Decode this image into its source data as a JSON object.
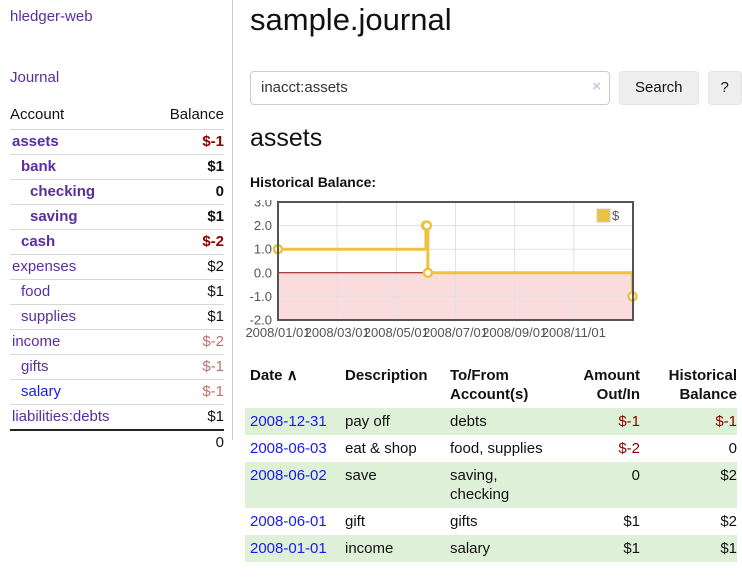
{
  "brand": "hledger-web",
  "nav": {
    "journal_label": "Journal"
  },
  "sidebar_table": {
    "headers": {
      "account": "Account",
      "balance": "Balance"
    },
    "rows": [
      {
        "name": "assets",
        "balance": "$-1",
        "indent": 1,
        "bold": true,
        "balance_class": "neg-strong",
        "link_class": ""
      },
      {
        "name": "bank",
        "balance": "$1",
        "indent": 2,
        "bold": true,
        "balance_class": "",
        "link_class": ""
      },
      {
        "name": "checking",
        "balance": "0",
        "indent": 3,
        "bold": true,
        "balance_class": "",
        "link_class": ""
      },
      {
        "name": "saving",
        "balance": "$1",
        "indent": 3,
        "bold": true,
        "balance_class": "",
        "link_class": ""
      },
      {
        "name": "cash",
        "balance": "$-2",
        "indent": 2,
        "bold": true,
        "balance_class": "neg-strong",
        "link_class": ""
      },
      {
        "name": "expenses",
        "balance": "$2",
        "indent": 1,
        "bold": false,
        "balance_class": "",
        "link_class": ""
      },
      {
        "name": "food",
        "balance": "$1",
        "indent": 2,
        "bold": false,
        "balance_class": "",
        "link_class": ""
      },
      {
        "name": "supplies",
        "balance": "$1",
        "indent": 2,
        "bold": false,
        "balance_class": "",
        "link_class": ""
      },
      {
        "name": "income",
        "balance": "$-2",
        "indent": 1,
        "bold": false,
        "balance_class": "neg-muted",
        "link_class": ""
      },
      {
        "name": "gifts",
        "balance": "$-1",
        "indent": 2,
        "bold": false,
        "balance_class": "neg-muted",
        "link_class": ""
      },
      {
        "name": "salary",
        "balance": "$-1",
        "indent": 2,
        "bold": false,
        "balance_class": "neg-muted",
        "link_class": "blue"
      },
      {
        "name": "liabilities:debts",
        "balance": "$1",
        "indent": 1,
        "bold": false,
        "balance_class": "",
        "link_class": ""
      }
    ],
    "total": "0"
  },
  "header": {
    "title": "sample.journal"
  },
  "search": {
    "value": "inacct:assets",
    "clear_icon": "×",
    "button_label": "Search",
    "help_label": "?"
  },
  "account_page": {
    "title": "assets",
    "chart_label": "Historical Balance:"
  },
  "chart_data": {
    "type": "line",
    "style": "step",
    "series": [
      {
        "name": "$",
        "color": "#EDC240",
        "points": [
          {
            "x": "2008-01-01",
            "y": 1
          },
          {
            "x": "2008-06-01",
            "y": 2
          },
          {
            "x": "2008-06-02",
            "y": 2
          },
          {
            "x": "2008-06-03",
            "y": 0
          },
          {
            "x": "2008-12-31",
            "y": -1
          }
        ]
      }
    ],
    "ylim": [
      -2,
      3
    ],
    "yticks": [
      3.0,
      2.0,
      1.0,
      0.0,
      -1.0,
      -2.0
    ],
    "xticks": [
      "2008/01/01",
      "2008/03/01",
      "2008/05/01",
      "2008/07/01",
      "2008/09/01",
      "2008/11/01"
    ],
    "legend_position": "top-right",
    "grid": true,
    "negative_region_color": "#fbdcdc",
    "zero_line_color": "#8b0000",
    "border_color": "#545454",
    "gridline_color": "#e2e2e2"
  },
  "register": {
    "sort_icon": "∧",
    "headers": {
      "date": "Date",
      "description": "Description",
      "accounts": "To/From Account(s)",
      "amount": "Amount Out/In",
      "balance": "Historical Balance"
    },
    "rows": [
      {
        "date": "2008-12-31",
        "description": "pay off",
        "accounts": "debts",
        "amount": "$-1",
        "amount_negative": true,
        "balance": "$-1",
        "balance_negative": true
      },
      {
        "date": "2008-06-03",
        "description": "eat & shop",
        "accounts": "food, supplies",
        "amount": "$-2",
        "amount_negative": true,
        "balance": "0",
        "balance_negative": false
      },
      {
        "date": "2008-06-02",
        "description": "save",
        "accounts": "saving, checking",
        "amount": "0",
        "amount_negative": false,
        "balance": "$2",
        "balance_negative": false
      },
      {
        "date": "2008-06-01",
        "description": "gift",
        "accounts": "gifts",
        "amount": "$1",
        "amount_negative": false,
        "balance": "$2",
        "balance_negative": false
      },
      {
        "date": "2008-01-01",
        "description": "income",
        "accounts": "salary",
        "amount": "$1",
        "amount_negative": false,
        "balance": "$1",
        "balance_negative": false
      }
    ]
  },
  "colors": {
    "link_purple": "#5b2d9e",
    "link_blue": "#1a1aee",
    "negative_strong": "#8b0000",
    "negative_muted": "#bb7272",
    "row_highlight_green": "#dff0d8",
    "series_gold": "#EDC240",
    "chart_negative_region": "#fbdcdc",
    "button_gray": "#eeeeee"
  }
}
